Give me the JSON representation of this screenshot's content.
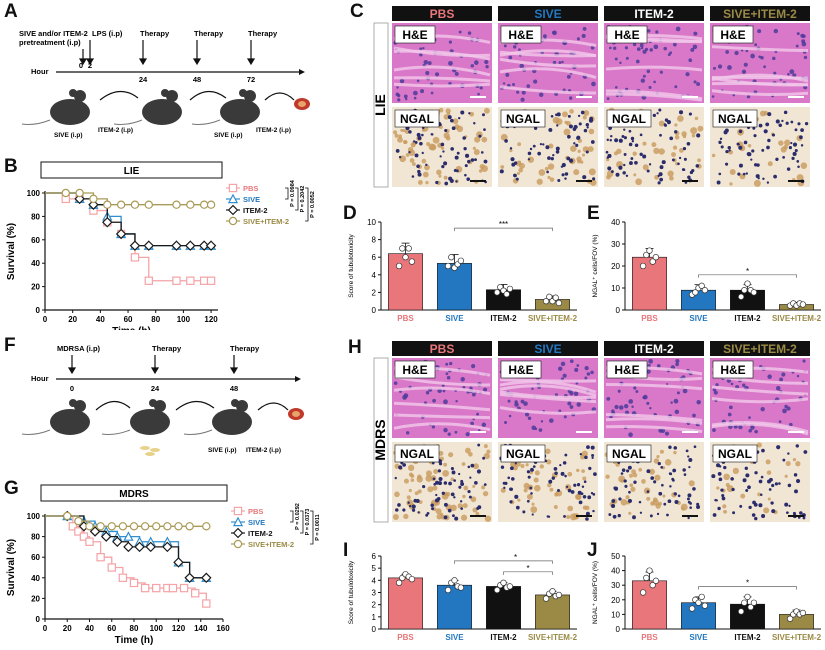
{
  "panels": {
    "A": "A",
    "B": "B",
    "C": "C",
    "D": "D",
    "E": "E",
    "F": "F",
    "G": "G",
    "H": "H",
    "I": "I",
    "J": "J"
  },
  "colors": {
    "pbs": "#e8767a",
    "sive": "#2277c0",
    "item2": "#111111",
    "combo": "#9b8a45",
    "line_pbs": "#f4a3a6",
    "line_sive": "#2f8fd0",
    "line_item2": "#1a1a1a",
    "line_combo": "#a99a55",
    "he": "#d978c8",
    "ngal": "#c89a5c"
  },
  "timeline_A": {
    "header": "SIVE and/or ITEM-2\npretreatment (i.p)",
    "header_line1": "SIVE and/or ITEM-2",
    "header_line2": "pretreatment (i.p)",
    "lps": "LPS (i.p)",
    "hour_label": "Hour",
    "ticks": [
      "0",
      "2",
      "24",
      "48",
      "72"
    ],
    "therapy": "Therapy",
    "mouse_labels": [
      "SIVE (i.p)",
      "ITEM-2 (i.p)",
      "SIVE (i.p)",
      "ITEM-2 (i.p)"
    ]
  },
  "timeline_F": {
    "header": "MDRSA (i.p)",
    "hour_label": "Hour",
    "ticks": [
      "0",
      "24",
      "48"
    ],
    "therapy": "Therapy",
    "mouse_labels": [
      "SIVE (i.p)",
      "ITEM-2 (i.p)"
    ]
  },
  "chart_data": [
    {
      "id": "B",
      "type": "line",
      "title": "LIE",
      "xlabel": "Time (h)",
      "ylabel": "Survival (%)",
      "xlim": [
        0,
        125
      ],
      "ylim": [
        0,
        100
      ],
      "xticks": [
        "0",
        "20",
        "40",
        "60",
        "80",
        "100",
        "120"
      ],
      "yticks": [
        "0",
        "20",
        "40",
        "60",
        "80",
        "100"
      ],
      "series": [
        {
          "name": "PBS",
          "x": [
            0,
            15,
            25,
            35,
            45,
            55,
            65,
            75,
            95,
            105,
            115,
            120
          ],
          "y": [
            100,
            95,
            95,
            85,
            75,
            65,
            45,
            25,
            25,
            25,
            25,
            25
          ]
        },
        {
          "name": "SIVE",
          "x": [
            0,
            25,
            35,
            45,
            55,
            65,
            75,
            95,
            105,
            115,
            120
          ],
          "y": [
            100,
            95,
            90,
            80,
            65,
            55,
            55,
            55,
            55,
            55,
            55
          ]
        },
        {
          "name": "ITEM-2",
          "x": [
            0,
            25,
            35,
            45,
            55,
            65,
            75,
            95,
            105,
            115,
            120
          ],
          "y": [
            100,
            95,
            90,
            75,
            65,
            55,
            55,
            55,
            55,
            55,
            55
          ]
        },
        {
          "name": "SIVE+ITEM-2",
          "x": [
            0,
            15,
            25,
            35,
            45,
            55,
            65,
            75,
            95,
            105,
            115,
            120
          ],
          "y": [
            100,
            100,
            100,
            95,
            90,
            90,
            90,
            90,
            90,
            90,
            90,
            90
          ]
        }
      ],
      "pvalues": [
        "P = 0.0984",
        "P = 0.2042",
        "P = 0.0052"
      ]
    },
    {
      "id": "G",
      "type": "line",
      "title": "MDRS",
      "xlabel": "Time (h)",
      "ylabel": "Survival (%)",
      "xlim": [
        0,
        160
      ],
      "ylim": [
        0,
        100
      ],
      "xticks": [
        "0",
        "20",
        "40",
        "60",
        "80",
        "100",
        "120",
        "140",
        "160"
      ],
      "yticks": [
        "0",
        "20",
        "40",
        "60",
        "80",
        "100"
      ],
      "series": [
        {
          "name": "PBS",
          "x": [
            0,
            25,
            30,
            35,
            40,
            50,
            60,
            70,
            80,
            90,
            100,
            110,
            115,
            125,
            135,
            145
          ],
          "y": [
            100,
            90,
            85,
            80,
            75,
            60,
            50,
            40,
            35,
            30,
            30,
            30,
            30,
            30,
            25,
            15
          ]
        },
        {
          "name": "SIVE",
          "x": [
            0,
            20,
            35,
            45,
            55,
            65,
            75,
            85,
            95,
            110,
            120,
            130,
            145
          ],
          "y": [
            100,
            100,
            95,
            90,
            85,
            80,
            80,
            75,
            75,
            75,
            55,
            40,
            40
          ]
        },
        {
          "name": "ITEM-2",
          "x": [
            0,
            20,
            35,
            45,
            55,
            65,
            75,
            85,
            95,
            110,
            120,
            130,
            145
          ],
          "y": [
            100,
            100,
            90,
            85,
            80,
            75,
            70,
            70,
            70,
            70,
            55,
            40,
            40
          ]
        },
        {
          "name": "SIVE+ITEM-2",
          "x": [
            0,
            20,
            30,
            40,
            50,
            60,
            70,
            80,
            90,
            100,
            110,
            120,
            130,
            145
          ],
          "y": [
            100,
            100,
            95,
            90,
            90,
            90,
            90,
            90,
            90,
            90,
            90,
            90,
            90,
            90
          ]
        }
      ],
      "pvalues": [
        "P = 0.0292",
        "P = 0.0373",
        "P = 0.0011"
      ]
    },
    {
      "id": "D",
      "type": "bar",
      "ylabel": "Score of tubulotoxicity",
      "categories": [
        "PBS",
        "SIVE",
        "ITEM-2",
        "SIVE+ITEM-2"
      ],
      "values": [
        6.4,
        5.3,
        2.3,
        1.2
      ],
      "errors": [
        1.2,
        1.0,
        0.6,
        0.4
      ],
      "points": [
        [
          5,
          7,
          6,
          7,
          5.5
        ],
        [
          5,
          6,
          4.8,
          5.2,
          5.6
        ],
        [
          2,
          2.6,
          2.2,
          1.8,
          2.4
        ],
        [
          1,
          1.5,
          1,
          1.4,
          0.8
        ]
      ],
      "ylim": [
        0,
        10
      ],
      "yticks": [
        "0",
        "2",
        "4",
        "6",
        "8",
        "10"
      ],
      "annotation": "***"
    },
    {
      "id": "E",
      "type": "bar",
      "ylabel": "NGAL⁺ cells/FOV (%)",
      "categories": [
        "PBS",
        "SIVE",
        "ITEM-2",
        "SIVE+ITEM-2"
      ],
      "values": [
        24,
        9,
        9,
        2.5
      ],
      "errors": [
        4,
        2.5,
        2.5,
        1
      ],
      "points": [
        [
          20,
          25,
          27,
          22,
          24
        ],
        [
          7,
          8,
          10,
          11,
          9
        ],
        [
          6,
          9,
          12,
          9,
          8
        ],
        [
          2,
          3,
          2,
          3,
          2.5
        ]
      ],
      "ylim": [
        0,
        40
      ],
      "yticks": [
        "0",
        "10",
        "20",
        "30",
        "40"
      ],
      "annotation": "*"
    },
    {
      "id": "I",
      "type": "bar",
      "ylabel": "Score of tubulotoxicity",
      "categories": [
        "PBS",
        "SIVE",
        "ITEM-2",
        "SIVE+ITEM-2"
      ],
      "values": [
        4.2,
        3.6,
        3.5,
        2.8
      ],
      "errors": [
        0.3,
        0.4,
        0.3,
        0.3
      ],
      "points": [
        [
          3.8,
          4.2,
          4.5,
          4.3,
          4.1
        ],
        [
          3.2,
          3.8,
          4,
          3.5,
          3.4
        ],
        [
          3.2,
          3.6,
          3.8,
          3.4,
          3.5
        ],
        [
          2.5,
          2.9,
          3.1,
          2.7,
          2.8
        ]
      ],
      "ylim": [
        0,
        6
      ],
      "yticks": [
        "0",
        "1",
        "2",
        "3",
        "4",
        "5",
        "6"
      ],
      "annotations": [
        "*",
        "*"
      ]
    },
    {
      "id": "J",
      "type": "bar",
      "ylabel": "NGAL⁺ cells/FOV (%)",
      "categories": [
        "PBS",
        "SIVE",
        "ITEM-2",
        "SIVE+ITEM-2"
      ],
      "values": [
        33,
        18,
        17,
        10
      ],
      "errors": [
        6,
        4,
        5,
        3
      ],
      "points": [
        [
          25,
          35,
          40,
          30,
          33
        ],
        [
          14,
          20,
          18,
          22,
          16
        ],
        [
          12,
          18,
          22,
          15,
          18
        ],
        [
          7,
          10,
          12,
          10,
          11
        ]
      ],
      "ylim": [
        0,
        50
      ],
      "yticks": [
        "0",
        "10",
        "20",
        "30",
        "40",
        "50"
      ],
      "annotation": "*"
    }
  ],
  "histology": {
    "headers": [
      "PBS",
      "SIVE",
      "ITEM-2",
      "SIVE+ITEM-2"
    ],
    "stain_he": "H&E",
    "stain_ngal": "NGAL",
    "side_C": "LIE",
    "side_H": "MDRS"
  }
}
